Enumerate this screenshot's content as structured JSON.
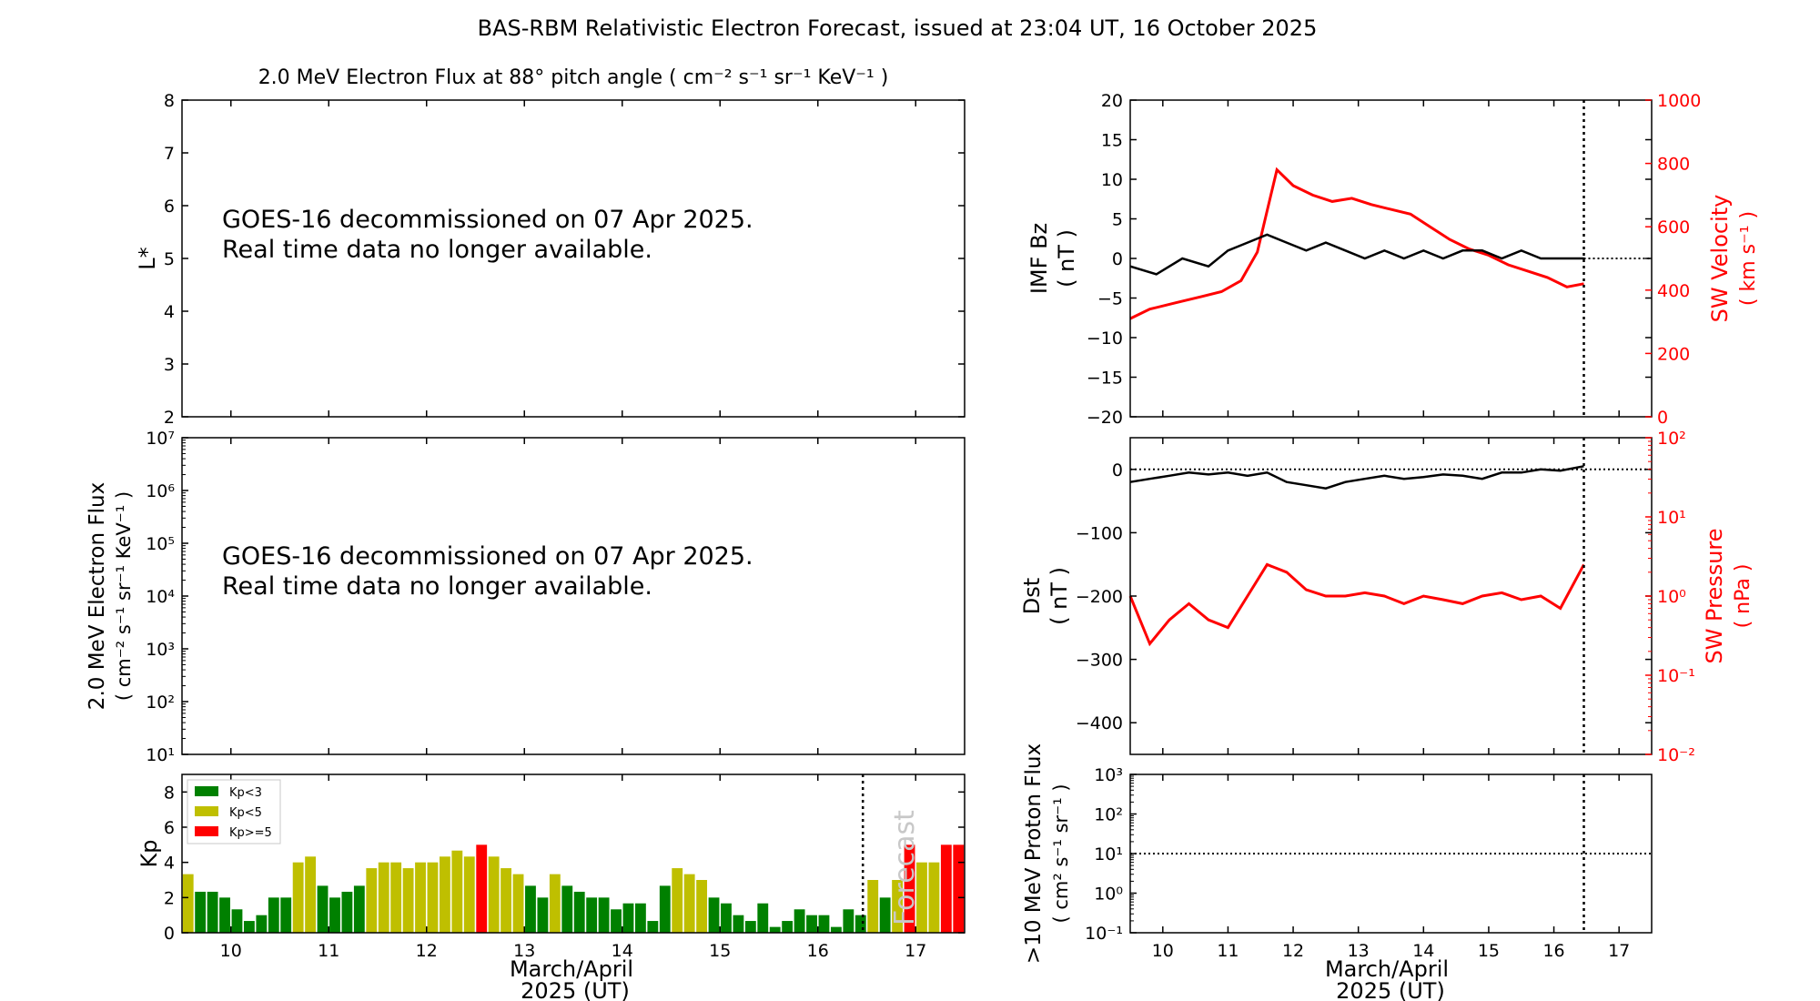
{
  "figure": {
    "title": "BAS-RBM Relativistic Electron Forecast, issued at 23:04 UT, 16 October 2025",
    "colors": {
      "bz": "#000000",
      "velocity": "#ff0000",
      "kp_low": "#008000",
      "kp_mid": "#bfbf00",
      "kp_high": "#ff0000",
      "background": "#ffffff"
    }
  },
  "chart_data": [
    {
      "id": "lstar",
      "type": "heatmap",
      "title": "2.0 MeV Electron Flux at 88° pitch angle ( cm⁻² s⁻¹ sr⁻¹ KeV⁻¹ )",
      "ylabel": "L*",
      "ylim": [
        2,
        8
      ],
      "yticks": [
        2,
        3,
        4,
        5,
        6,
        7,
        8
      ],
      "xlim": [
        9.5,
        17.5
      ],
      "message": [
        "GOES-16 decommissioned on 07 Apr 2025.",
        "Real time data no longer available."
      ]
    },
    {
      "id": "flux",
      "type": "line",
      "ylabel": [
        "2.0 MeV Electron Flux",
        "( cm⁻² s⁻¹ sr⁻¹ KeV⁻¹ )"
      ],
      "yscale": "log",
      "ylim": [
        10,
        10000000
      ],
      "ytick_exponents": [
        1,
        2,
        3,
        4,
        5,
        6,
        7
      ],
      "xlim": [
        9.5,
        17.5
      ],
      "message": [
        "GOES-16 decommissioned on 07 Apr 2025.",
        "Real time data no longer available."
      ]
    },
    {
      "id": "kp",
      "type": "bar",
      "ylabel": "Kp",
      "xlabel": [
        "March/April",
        "2025 (UT)"
      ],
      "xlim": [
        9.5,
        17.5
      ],
      "ylim": [
        0,
        9
      ],
      "yticks": [
        0,
        2,
        4,
        6,
        8
      ],
      "xticks": [
        10,
        11,
        12,
        13,
        14,
        15,
        16,
        17
      ],
      "now": 16.46,
      "forecast_label": "Forecast",
      "bar_start": 9.5,
      "bar_width": 0.125,
      "legend": [
        {
          "label": "Kp<3",
          "color": "#008000"
        },
        {
          "label": "Kp<5",
          "color": "#bfbf00"
        },
        {
          "label": "Kp>=5",
          "color": "#ff0000"
        }
      ],
      "values": [
        3.33,
        2.33,
        2.33,
        2.0,
        1.33,
        0.67,
        1.0,
        2.0,
        2.0,
        4.0,
        4.33,
        2.67,
        2.0,
        2.33,
        2.67,
        3.67,
        4.0,
        4.0,
        3.67,
        4.0,
        4.0,
        4.33,
        4.67,
        4.33,
        5.0,
        4.33,
        3.67,
        3.33,
        2.67,
        2.0,
        3.33,
        2.67,
        2.33,
        2.0,
        2.0,
        1.33,
        1.67,
        1.67,
        0.67,
        2.67,
        3.67,
        3.33,
        3.0,
        2.0,
        1.67,
        1.0,
        0.67,
        1.67,
        0.33,
        0.67,
        1.33,
        1.0,
        1.0,
        0.33,
        1.33,
        1.0,
        3.0,
        2.0,
        3.0,
        5.0,
        4.0,
        4.0,
        5.0,
        5.0
      ]
    },
    {
      "id": "bz",
      "type": "line",
      "ylabel": [
        "IMF Bz",
        "( nT )"
      ],
      "y2label": [
        "SW Velocity",
        "( km s⁻¹ )"
      ],
      "xlim": [
        9.5,
        17.5
      ],
      "ylim": [
        -20,
        20
      ],
      "yticks": [
        -20,
        -15,
        -10,
        -5,
        0,
        5,
        10,
        15,
        20
      ],
      "y2lim": [
        0,
        1000
      ],
      "y2ticks": [
        0,
        200,
        400,
        600,
        800,
        1000
      ],
      "xticks": [
        10,
        11,
        12,
        13,
        14,
        15,
        16,
        17
      ],
      "now": 16.46,
      "series": [
        {
          "name": "IMF Bz",
          "axis": "left",
          "x": [
            9.5,
            9.9,
            10.3,
            10.7,
            11.0,
            11.3,
            11.6,
            11.9,
            12.2,
            12.5,
            12.8,
            13.1,
            13.4,
            13.7,
            14.0,
            14.3,
            14.6,
            14.9,
            15.2,
            15.5,
            15.8,
            16.1,
            16.46
          ],
          "y": [
            -1,
            -2,
            0,
            -1,
            1,
            2,
            3,
            2,
            1,
            2,
            1,
            0,
            1,
            0,
            1,
            0,
            1,
            1,
            0,
            1,
            0,
            0,
            0
          ]
        },
        {
          "name": "SW Velocity",
          "axis": "right",
          "x": [
            9.5,
            9.8,
            10.2,
            10.6,
            10.9,
            11.2,
            11.45,
            11.6,
            11.75,
            12.0,
            12.3,
            12.6,
            12.9,
            13.2,
            13.5,
            13.8,
            14.1,
            14.4,
            14.7,
            15.0,
            15.3,
            15.6,
            15.9,
            16.2,
            16.46
          ],
          "y": [
            310,
            340,
            360,
            380,
            395,
            430,
            520,
            650,
            780,
            730,
            700,
            680,
            690,
            670,
            655,
            640,
            600,
            560,
            530,
            510,
            480,
            460,
            440,
            410,
            420
          ]
        }
      ]
    },
    {
      "id": "dst",
      "type": "line",
      "ylabel": [
        "Dst",
        "( nT )"
      ],
      "y2label": [
        "SW Pressure",
        "( nPa )"
      ],
      "xlim": [
        9.5,
        17.5
      ],
      "ylim": [
        -450,
        50
      ],
      "yticks": [
        -400,
        -300,
        -200,
        -100,
        0
      ],
      "y2scale": "log",
      "y2lim": [
        0.01,
        100
      ],
      "y2tick_exponents": [
        -2,
        -1,
        0,
        1,
        2
      ],
      "xticks": [
        10,
        11,
        12,
        13,
        14,
        15,
        16,
        17
      ],
      "now": 16.46,
      "series": [
        {
          "name": "Dst",
          "axis": "left",
          "x": [
            9.5,
            9.8,
            10.1,
            10.4,
            10.7,
            11.0,
            11.3,
            11.6,
            11.9,
            12.2,
            12.5,
            12.8,
            13.1,
            13.4,
            13.7,
            14.0,
            14.3,
            14.6,
            14.9,
            15.2,
            15.5,
            15.8,
            16.1,
            16.46
          ],
          "y": [
            -20,
            -15,
            -10,
            -5,
            -8,
            -5,
            -10,
            -5,
            -20,
            -25,
            -30,
            -20,
            -15,
            -10,
            -15,
            -12,
            -8,
            -10,
            -15,
            -5,
            -5,
            0,
            -2,
            5
          ]
        },
        {
          "name": "SW Pressure",
          "axis": "right",
          "x": [
            9.5,
            9.8,
            10.1,
            10.4,
            10.7,
            11.0,
            11.3,
            11.6,
            11.9,
            12.2,
            12.5,
            12.8,
            13.1,
            13.4,
            13.7,
            14.0,
            14.3,
            14.6,
            14.9,
            15.2,
            15.5,
            15.8,
            16.1,
            16.46
          ],
          "y": [
            1.0,
            0.25,
            0.5,
            0.8,
            0.5,
            0.4,
            1.0,
            2.5,
            2.0,
            1.2,
            1.0,
            1.0,
            1.1,
            1.0,
            0.8,
            1.0,
            0.9,
            0.8,
            1.0,
            1.1,
            0.9,
            1.0,
            0.7,
            2.5
          ]
        }
      ]
    },
    {
      "id": "proton",
      "type": "line",
      "ylabel": [
        ">10 MeV Proton Flux",
        "( cm² s⁻¹ sr⁻¹ )"
      ],
      "xlabel": [
        "March/April",
        "2025 (UT)"
      ],
      "xlim": [
        9.5,
        17.5
      ],
      "yscale": "log",
      "ylim": [
        0.1,
        1000
      ],
      "ytick_exponents": [
        -1,
        0,
        1,
        2,
        3
      ],
      "xticks": [
        10,
        11,
        12,
        13,
        14,
        15,
        16,
        17
      ],
      "now": 16.46,
      "threshold": 10
    }
  ]
}
